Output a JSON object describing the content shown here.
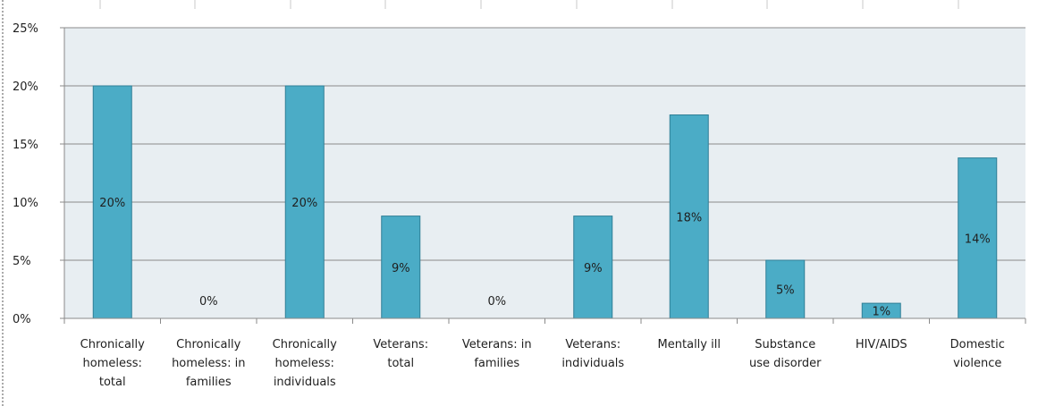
{
  "chart_data": {
    "type": "bar",
    "categories": [
      [
        "Chronically",
        "homeless:",
        "total"
      ],
      [
        "Chronically",
        "homeless: in",
        "families"
      ],
      [
        "Chronically",
        "homeless:",
        "individuals"
      ],
      [
        "Veterans:",
        "total"
      ],
      [
        "Veterans: in",
        "families"
      ],
      [
        "Veterans:",
        "individuals"
      ],
      [
        "Mentally ill"
      ],
      [
        "Substance",
        "use disorder"
      ],
      [
        "HIV/AIDS"
      ],
      [
        "Domestic",
        "violence"
      ]
    ],
    "values": [
      20,
      0,
      20,
      8.8,
      0,
      8.8,
      17.5,
      5,
      1.3,
      13.8
    ],
    "data_labels": [
      "20%",
      "0%",
      "20%",
      "9%",
      "0%",
      "9%",
      "18%",
      "5%",
      "1%",
      "14%"
    ],
    "ylim": [
      0,
      25
    ],
    "yticks": [
      0,
      5,
      10,
      15,
      20,
      25
    ],
    "ytick_labels": [
      "0%",
      "5%",
      "10%",
      "15%",
      "20%",
      "25%"
    ],
    "gridlines": true,
    "legend": "none",
    "colors": {
      "bar_fill": "#4bacc6",
      "bar_stroke": "#2f7f96",
      "plot_background": "#e8eef2",
      "gridline": "#8a8a8a",
      "axis": "#8a8a8a"
    }
  }
}
